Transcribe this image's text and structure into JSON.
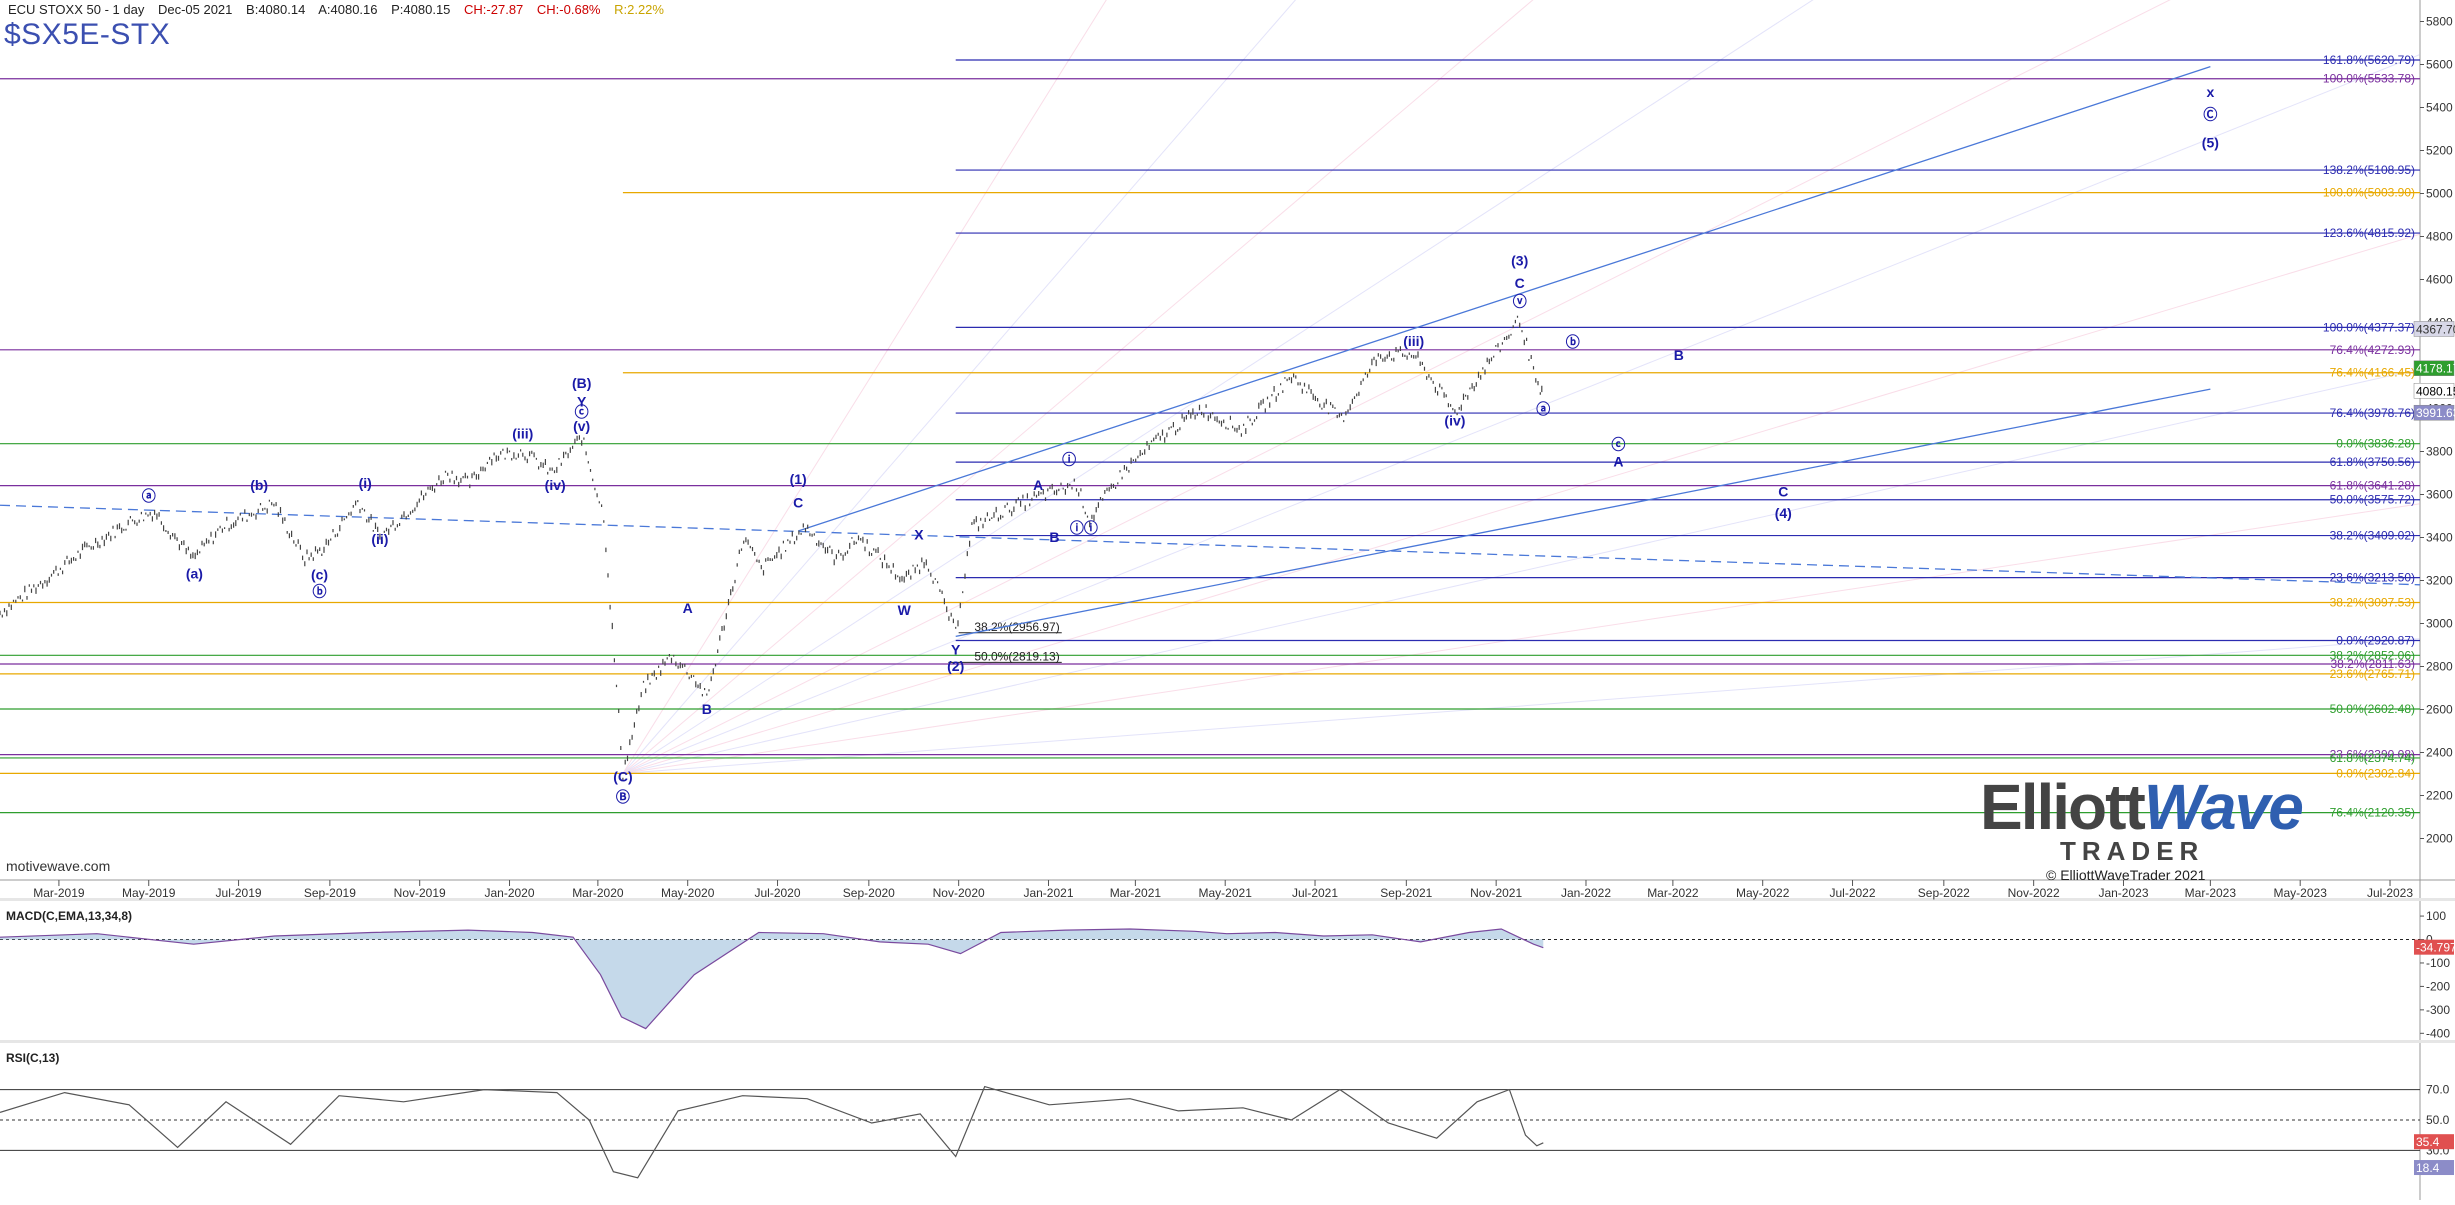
{
  "header": {
    "instrument": "ECU STOXX 50 - 1 day",
    "date": "Dec-05 2021",
    "bid": "B:4080.14",
    "ask": "A:4080.16",
    "last": "P:4080.15",
    "change": "CH:-27.87",
    "change_pct": "CH:-0.68%",
    "range": "R:2.22%",
    "symbol": "$SX5E-STX"
  },
  "watermark": "motivewave.com",
  "logo": {
    "name_a": "Elliott",
    "name_b": "Wave",
    "sub": "TRADER",
    "copyright": "© ElliottWaveTrader 2021"
  },
  "colors": {
    "blue_line": "#2b2bb0",
    "purple_line": "#7a2f9e",
    "green_line": "#2e9e2e",
    "orange_line": "#e8a800",
    "trend_line": "#4a78d8",
    "wave_label": "#1a1aa8",
    "macd_pos": "#9fbfdc",
    "macd_neg": "#e07a7a"
  },
  "chart_data": [
    {
      "type": "line",
      "title": "",
      "x_ticks": [
        "Mar-2019",
        "May-2019",
        "Jul-2019",
        "Sep-2019",
        "Nov-2019",
        "Jan-2020",
        "Mar-2020",
        "May-2020",
        "Jul-2020",
        "Sep-2020",
        "Nov-2020",
        "Jan-2021",
        "Mar-2021",
        "May-2021",
        "Jul-2021",
        "Sep-2021",
        "Nov-2021",
        "Jan-2022",
        "Mar-2022",
        "May-2022",
        "Jul-2022",
        "Sep-2022",
        "Nov-2022",
        "Jan-2023",
        "Mar-2023",
        "May-2023",
        "Jul-2023"
      ],
      "ylim": [
        1900,
        5900
      ],
      "y_ticks": [
        2000,
        2200,
        2400,
        2600,
        2800,
        3000,
        3200,
        3400,
        3600,
        3800,
        4000,
        4200,
        4400,
        4600,
        4800,
        5000,
        5200,
        5400,
        5600,
        5800
      ],
      "x_range": [
        "2019-01-20",
        "2023-07-20"
      ],
      "series": [
        {
          "points": [
            [
              "2019-01-20",
              3050
            ],
            [
              "2019-02-15",
              3180
            ],
            [
              "2019-03-20",
              3350
            ],
            [
              "2019-04-20",
              3480
            ],
            [
              "2019-05-05",
              3520
            ],
            [
              "2019-05-31",
              3300
            ],
            [
              "2019-06-20",
              3450
            ],
            [
              "2019-07-25",
              3560
            ],
            [
              "2019-08-15",
              3300
            ],
            [
              "2019-08-28",
              3350
            ],
            [
              "2019-09-20",
              3570
            ],
            [
              "2019-10-05",
              3400
            ],
            [
              "2019-11-20",
              3700
            ],
            [
              "2019-12-05",
              3650
            ],
            [
              "2019-12-20",
              3780
            ],
            [
              "2020-01-10",
              3800
            ],
            [
              "2020-01-30",
              3700
            ],
            [
              "2020-02-19",
              3867
            ],
            [
              "2020-03-05",
              3500
            ],
            [
              "2020-03-18",
              2303
            ],
            [
              "2020-04-01",
              2700
            ],
            [
              "2020-04-20",
              2850
            ],
            [
              "2020-05-05",
              2750
            ],
            [
              "2020-05-14",
              2650
            ],
            [
              "2020-06-08",
              3400
            ],
            [
              "2020-06-20",
              3250
            ],
            [
              "2020-07-20",
              3450
            ],
            [
              "2020-08-10",
              3300
            ],
            [
              "2020-08-25",
              3400
            ],
            [
              "2020-09-25",
              3200
            ],
            [
              "2020-10-10",
              3300
            ],
            [
              "2020-10-30",
              2959
            ],
            [
              "2020-11-10",
              3450
            ],
            [
              "2020-12-10",
              3550
            ],
            [
              "2020-12-30",
              3600
            ],
            [
              "2021-01-20",
              3650
            ],
            [
              "2021-01-29",
              3480
            ],
            [
              "2021-02-20",
              3700
            ],
            [
              "2021-03-15",
              3850
            ],
            [
              "2021-04-15",
              4000
            ],
            [
              "2021-05-12",
              3900
            ],
            [
              "2021-06-15",
              4150
            ],
            [
              "2021-07-19",
              3950
            ],
            [
              "2021-08-13",
              4250
            ],
            [
              "2021-09-06",
              4250
            ],
            [
              "2021-10-04",
              3980
            ],
            [
              "2021-10-20",
              4150
            ],
            [
              "2021-11-17",
              4415
            ],
            [
              "2021-12-01",
              4050
            ],
            [
              "2021-12-03",
              4080
            ]
          ]
        }
      ],
      "fib_levels": [
        {
          "label": "161.8%(5620.79)",
          "value": 5620.79,
          "color": "blue"
        },
        {
          "label": "100.0%(5533.78)",
          "value": 5533.78,
          "color": "purple"
        },
        {
          "label": "138.2%(5108.95)",
          "value": 5108.95,
          "color": "blue"
        },
        {
          "label": "100.0%(5003.90)",
          "value": 5003.9,
          "color": "orange"
        },
        {
          "label": "123.6%(4815.92)",
          "value": 4815.92,
          "color": "blue"
        },
        {
          "label": "100.0%(4377.37)",
          "value": 4377.37,
          "color": "blue"
        },
        {
          "label": "76.4%(4272.93)",
          "value": 4272.93,
          "color": "purple"
        },
        {
          "label": "76.4%(4166.45)",
          "value": 4166.45,
          "color": "orange"
        },
        {
          "label": "76.4%(3978.76)",
          "value": 3978.76,
          "color": "blue"
        },
        {
          "label": "0.0%(3836.28)",
          "value": 3836.28,
          "color": "green"
        },
        {
          "label": "61.8%(3750.56)",
          "value": 3750.56,
          "color": "blue"
        },
        {
          "label": "61.8%(3641.28)",
          "value": 3641.28,
          "color": "purple"
        },
        {
          "label": "50.0%(3575.72)",
          "value": 3575.72,
          "color": "blue"
        },
        {
          "label": "38.2%(3409.02)",
          "value": 3409.02,
          "color": "blue"
        },
        {
          "label": "23.6%(3213.50)",
          "value": 3213.5,
          "color": "blue"
        },
        {
          "label": "38.2%(3097.53)",
          "value": 3097.53,
          "color": "orange"
        },
        {
          "label": "0.0%(2920.87)",
          "value": 2920.87,
          "color": "blue"
        },
        {
          "label": "38.2%(2852.06)",
          "value": 2852.06,
          "color": "green"
        },
        {
          "label": "38.2%(2811.63)",
          "value": 2811.63,
          "color": "purple"
        },
        {
          "label": "23.6%(2765.71)",
          "value": 2765.71,
          "color": "orange"
        },
        {
          "label": "50.0%(2602.48)",
          "value": 2602.48,
          "color": "green"
        },
        {
          "label": "23.6%(2390.08)",
          "value": 2390.08,
          "color": "purple"
        },
        {
          "label": "61.8%(2374.74)",
          "value": 2374.74,
          "color": "green"
        },
        {
          "label": "0.0%(2302.84)",
          "value": 2302.84,
          "color": "orange"
        },
        {
          "label": "76.4%(2120.35)",
          "value": 2120.35,
          "color": "green"
        }
      ],
      "inline_fibs": [
        {
          "label": "38.2%(2956.97)",
          "value": 2956.97,
          "from": "2020-11-01",
          "to": "2021-01-10"
        },
        {
          "label": "50.0%(2819.13)",
          "value": 2819.13,
          "from": "2020-10-25",
          "to": "2021-01-10"
        }
      ],
      "price_tags": [
        {
          "label": "4367.70",
          "value": 4367.7,
          "bg": "#d8d8e8",
          "fg": "#333"
        },
        {
          "label": "4178.17",
          "value": 4185,
          "bg": "#2e9e2e",
          "fg": "#ffffff"
        },
        {
          "label": "4080.15",
          "value": 4080.15,
          "bg": "#ffffff",
          "fg": "#000000"
        },
        {
          "label": "3991.63",
          "value": 3978,
          "bg": "#8c8cc8",
          "fg": "#ffffff"
        }
      ],
      "wave_labels": [
        {
          "t": "ⓐ",
          "d": "2019-05-01",
          "v": 3570
        },
        {
          "t": "(a)",
          "d": "2019-06-01",
          "v": 3210
        },
        {
          "t": "(b)",
          "d": "2019-07-15",
          "v": 3620
        },
        {
          "t": "(c)",
          "d": "2019-08-25",
          "v": 3205
        },
        {
          "t": "ⓑ",
          "d": "2019-08-25",
          "v": 3125
        },
        {
          "t": "(i)",
          "d": "2019-09-25",
          "v": 3630
        },
        {
          "t": "(ii)",
          "d": "2019-10-05",
          "v": 3370
        },
        {
          "t": "(iii)",
          "d": "2020-01-10",
          "v": 3860
        },
        {
          "t": "(iv)",
          "d": "2020-02-01",
          "v": 3620
        },
        {
          "t": "(v)",
          "d": "2020-02-19",
          "v": 3895
        },
        {
          "t": "ⓒ",
          "d": "2020-02-19",
          "v": 3960
        },
        {
          "t": "Y",
          "d": "2020-02-19",
          "v": 4010
        },
        {
          "t": "(B)",
          "d": "2020-02-19",
          "v": 4095
        },
        {
          "t": "(C)",
          "d": "2020-03-18",
          "v": 2265
        },
        {
          "t": "Ⓑ",
          "d": "2020-03-18",
          "v": 2170
        },
        {
          "t": "A",
          "d": "2020-05-01",
          "v": 3050
        },
        {
          "t": "B",
          "d": "2020-05-14",
          "v": 2580
        },
        {
          "t": "(1)",
          "d": "2020-07-15",
          "v": 3650
        },
        {
          "t": "C",
          "d": "2020-07-15",
          "v": 3540
        },
        {
          "t": "X",
          "d": "2020-10-05",
          "v": 3390
        },
        {
          "t": "W",
          "d": "2020-09-25",
          "v": 3040
        },
        {
          "t": "Y",
          "d": "2020-10-30",
          "v": 2855
        },
        {
          "t": "(2)",
          "d": "2020-10-30",
          "v": 2780
        },
        {
          "t": "A",
          "d": "2020-12-25",
          "v": 3620
        },
        {
          "t": "B",
          "d": "2021-01-05",
          "v": 3380
        },
        {
          "t": "ⓘ",
          "d": "2021-01-15",
          "v": 3740
        },
        {
          "t": "ⓘⓘ",
          "d": "2021-01-25",
          "v": 3420
        },
        {
          "t": "(iii)",
          "d": "2021-09-06",
          "v": 4290
        },
        {
          "t": "(iv)",
          "d": "2021-10-04",
          "v": 3920
        },
        {
          "t": "ⓥ",
          "d": "2021-11-17",
          "v": 4475
        },
        {
          "t": "C",
          "d": "2021-11-17",
          "v": 4560
        },
        {
          "t": "(3)",
          "d": "2021-11-17",
          "v": 4665
        },
        {
          "t": "ⓐ",
          "d": "2021-12-03",
          "v": 3975
        },
        {
          "t": "ⓑ",
          "d": "2021-12-23",
          "v": 4285
        },
        {
          "t": "B",
          "d": "2022-03-05",
          "v": 4225
        },
        {
          "t": "ⓒ",
          "d": "2022-01-23",
          "v": 3810
        },
        {
          "t": "A",
          "d": "2022-01-23",
          "v": 3730
        },
        {
          "t": "C",
          "d": "2022-05-15",
          "v": 3590
        },
        {
          "t": "(4)",
          "d": "2022-05-15",
          "v": 3490
        },
        {
          "t": "x",
          "d": "2023-03-01",
          "v": 5450
        },
        {
          "t": "Ⓒ",
          "d": "2023-03-01",
          "v": 5345
        },
        {
          "t": "(5)",
          "d": "2023-03-01",
          "v": 5215
        }
      ]
    },
    {
      "type": "area",
      "title": "MACD(C,EMA,13,34,8)",
      "ylim": [
        -420,
        160
      ],
      "y_ticks": [
        100,
        0,
        -100,
        -200,
        -300,
        -400
      ],
      "current": "-34.797",
      "macd": [
        [
          0,
          10
        ],
        [
          60,
          25
        ],
        [
          120,
          -20
        ],
        [
          170,
          15
        ],
        [
          230,
          30
        ],
        [
          290,
          40
        ],
        [
          330,
          30
        ],
        [
          355,
          10
        ],
        [
          372,
          -150
        ],
        [
          385,
          -330
        ],
        [
          400,
          -380
        ],
        [
          430,
          -150
        ],
        [
          470,
          30
        ],
        [
          510,
          25
        ],
        [
          545,
          -10
        ],
        [
          575,
          -20
        ],
        [
          595,
          -60
        ],
        [
          620,
          30
        ],
        [
          660,
          40
        ],
        [
          700,
          45
        ],
        [
          740,
          35
        ],
        [
          760,
          25
        ],
        [
          790,
          30
        ],
        [
          820,
          15
        ],
        [
          850,
          20
        ],
        [
          880,
          -10
        ],
        [
          910,
          30
        ],
        [
          930,
          45
        ],
        [
          950,
          -20
        ],
        [
          956,
          -35
        ]
      ]
    },
    {
      "type": "line",
      "title": "RSI(C,13)",
      "ylim": [
        0,
        100
      ],
      "y_ticks": [
        70,
        50,
        30
      ],
      "current": "35.4",
      "current_signal": "18.4",
      "rsi": [
        [
          0,
          55
        ],
        [
          40,
          68
        ],
        [
          80,
          60
        ],
        [
          110,
          32
        ],
        [
          140,
          62
        ],
        [
          180,
          34
        ],
        [
          210,
          66
        ],
        [
          250,
          62
        ],
        [
          300,
          70
        ],
        [
          345,
          68
        ],
        [
          365,
          50
        ],
        [
          380,
          16
        ],
        [
          395,
          12
        ],
        [
          420,
          56
        ],
        [
          460,
          66
        ],
        [
          500,
          64
        ],
        [
          540,
          48
        ],
        [
          570,
          54
        ],
        [
          592,
          26
        ],
        [
          610,
          72
        ],
        [
          650,
          60
        ],
        [
          700,
          64
        ],
        [
          730,
          56
        ],
        [
          770,
          58
        ],
        [
          800,
          50
        ],
        [
          830,
          70
        ],
        [
          860,
          48
        ],
        [
          890,
          38
        ],
        [
          915,
          62
        ],
        [
          935,
          70
        ],
        [
          945,
          40
        ],
        [
          952,
          33
        ],
        [
          956,
          35
        ]
      ]
    }
  ]
}
